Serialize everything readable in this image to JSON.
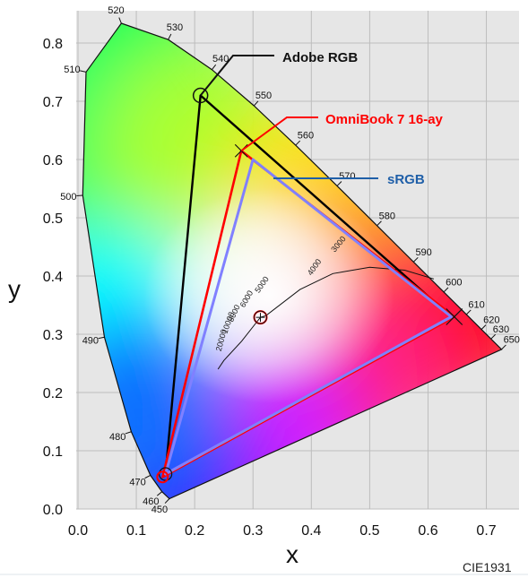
{
  "chart_data": {
    "type": "scatter",
    "title": "",
    "xlabel": "x",
    "ylabel": "y",
    "xlim": [
      0.0,
      0.75
    ],
    "ylim": [
      0.0,
      0.85
    ],
    "x_ticks": [
      "0.0",
      "0.1",
      "0.2",
      "0.3",
      "0.4",
      "0.5",
      "0.6",
      "0.7"
    ],
    "y_ticks": [
      "0.0",
      "0.1",
      "0.2",
      "0.3",
      "0.4",
      "0.5",
      "0.6",
      "0.7",
      "0.8"
    ],
    "grid": true,
    "footer": "CIE1931",
    "spectral_locus": [
      {
        "nm": "450",
        "x": 0.1566,
        "y": 0.0177
      },
      {
        "nm": "460",
        "x": 0.144,
        "y": 0.0297
      },
      {
        "nm": "470",
        "x": 0.1241,
        "y": 0.0578
      },
      {
        "nm": "480",
        "x": 0.0913,
        "y": 0.1327
      },
      {
        "nm": "490",
        "x": 0.0454,
        "y": 0.295
      },
      {
        "nm": "500",
        "x": 0.0082,
        "y": 0.5384
      },
      {
        "nm": "510",
        "x": 0.0139,
        "y": 0.7502
      },
      {
        "nm": "520",
        "x": 0.0743,
        "y": 0.8338
      },
      {
        "nm": "530",
        "x": 0.1547,
        "y": 0.8059
      },
      {
        "nm": "540",
        "x": 0.2296,
        "y": 0.7543
      },
      {
        "nm": "550",
        "x": 0.3016,
        "y": 0.6923
      },
      {
        "nm": "560",
        "x": 0.3731,
        "y": 0.6245
      },
      {
        "nm": "570",
        "x": 0.4441,
        "y": 0.5547
      },
      {
        "nm": "580",
        "x": 0.5125,
        "y": 0.4866
      },
      {
        "nm": "590",
        "x": 0.5752,
        "y": 0.4242
      },
      {
        "nm": "600",
        "x": 0.627,
        "y": 0.3725
      },
      {
        "nm": "610",
        "x": 0.6658,
        "y": 0.334
      },
      {
        "nm": "620",
        "x": 0.6915,
        "y": 0.3083
      },
      {
        "nm": "630",
        "x": 0.7079,
        "y": 0.292
      },
      {
        "nm": "650",
        "x": 0.726,
        "y": 0.274
      }
    ],
    "planckian_labels": [
      "3000",
      "4000",
      "5000",
      "6000",
      "8000",
      "10000",
      "20000"
    ],
    "series": [
      {
        "name": "Adobe RGB",
        "color": "#000000",
        "points": [
          {
            "x": 0.64,
            "y": 0.33
          },
          {
            "x": 0.21,
            "y": 0.71
          },
          {
            "x": 0.15,
            "y": 0.06
          }
        ]
      },
      {
        "name": "OmniBook 7 16-ay",
        "color": "#ff0000",
        "points": [
          {
            "x": 0.645,
            "y": 0.33
          },
          {
            "x": 0.28,
            "y": 0.615
          },
          {
            "x": 0.145,
            "y": 0.055
          }
        ]
      },
      {
        "name": "sRGB",
        "color": "#8080ff",
        "points": [
          {
            "x": 0.64,
            "y": 0.33
          },
          {
            "x": 0.3,
            "y": 0.6
          },
          {
            "x": 0.15,
            "y": 0.06
          }
        ]
      }
    ],
    "white_point": {
      "x": 0.3127,
      "y": 0.329
    }
  },
  "colors": {
    "adobe_label": "#111111",
    "omnibook_label": "#ff0000",
    "srgb_label": "#1f5fa8",
    "grid": "#bdbdbd",
    "plot_bg": "#e6e6e6"
  }
}
